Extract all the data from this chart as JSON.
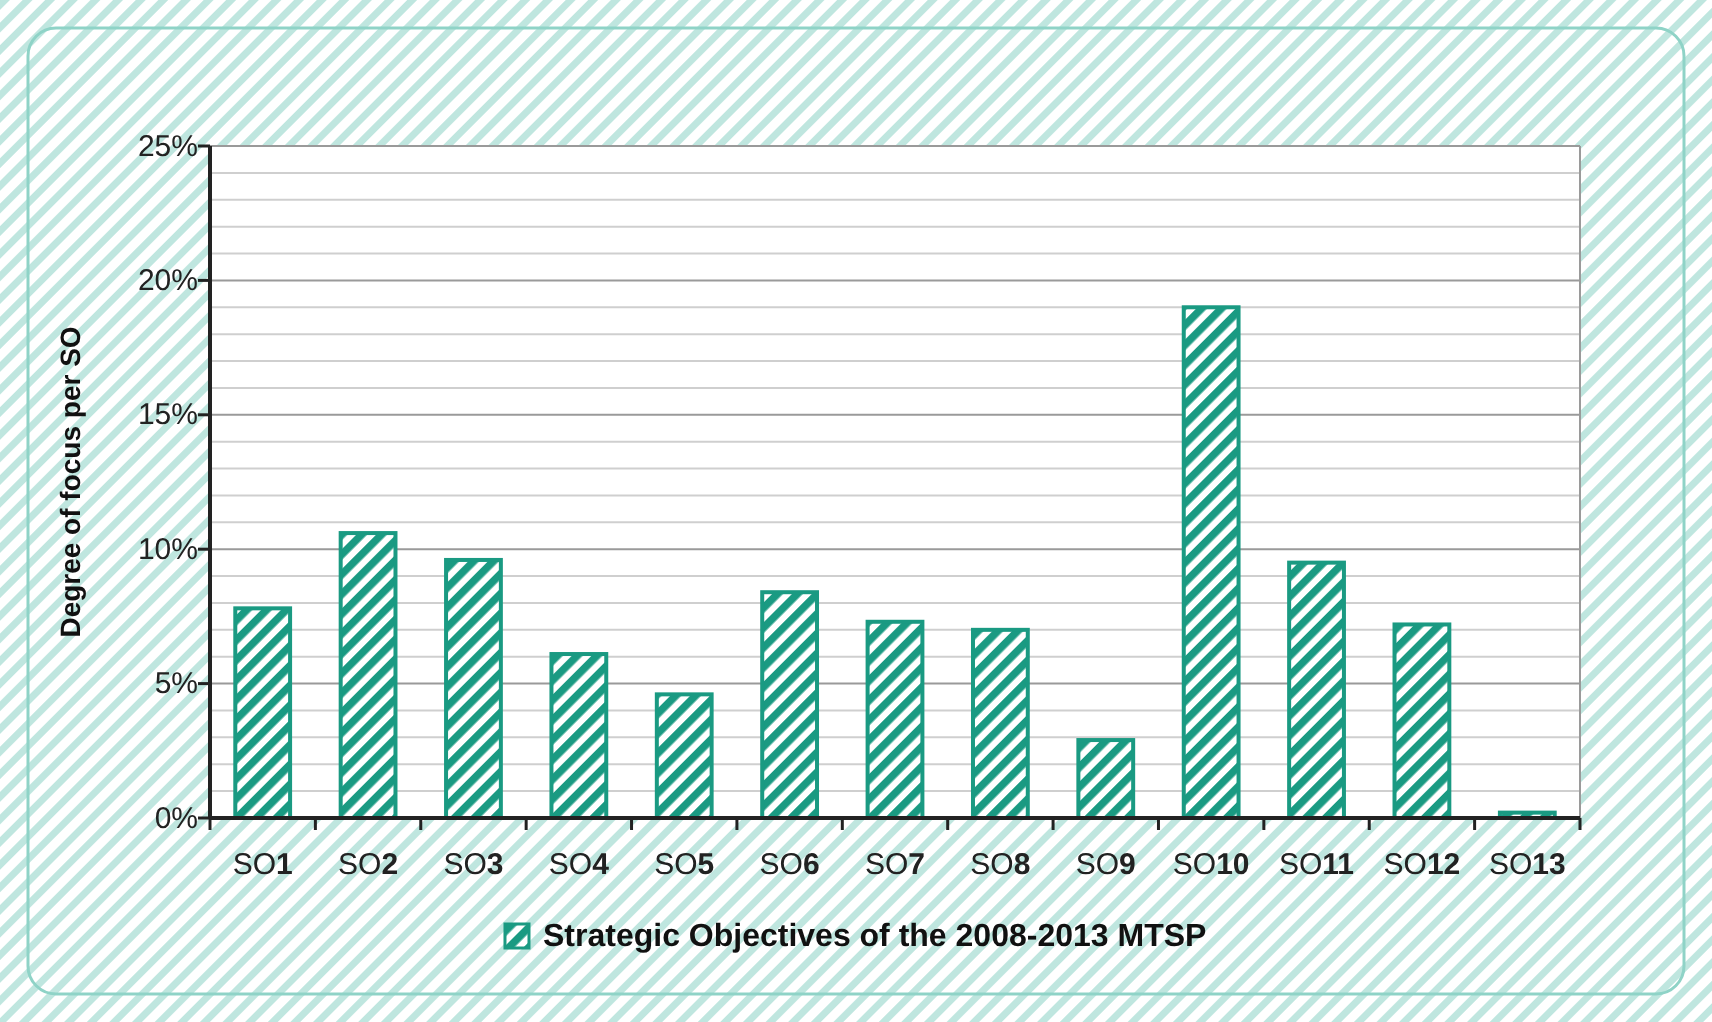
{
  "chart_data": {
    "type": "bar",
    "ylabel": "Degree of focus per SO",
    "categories": [
      "SO1",
      "SO2",
      "SO3",
      "SO4",
      "SO5",
      "SO6",
      "SO7",
      "SO8",
      "SO9",
      "SO10",
      "SO11",
      "SO12",
      "SO13"
    ],
    "series": [
      {
        "name": "Strategic Objectives of the 2008-2013 MTSP",
        "color": "#1a9a82",
        "values": [
          7.8,
          10.6,
          9.6,
          6.1,
          4.6,
          8.4,
          7.3,
          7.0,
          2.9,
          19.0,
          9.5,
          7.2,
          0.2
        ]
      }
    ],
    "ylim": [
      0,
      25
    ],
    "yticks": [
      {
        "value": 0,
        "label": "0%"
      },
      {
        "value": 1,
        "label": null
      },
      {
        "value": 2,
        "label": null
      },
      {
        "value": 3,
        "label": null
      },
      {
        "value": 4,
        "label": null
      },
      {
        "value": 5,
        "label": "5%"
      },
      {
        "value": 6,
        "label": null
      },
      {
        "value": 7,
        "label": null
      },
      {
        "value": 8,
        "label": null
      },
      {
        "value": 9,
        "label": null
      },
      {
        "value": 10,
        "label": "10%"
      },
      {
        "value": 11,
        "label": null
      },
      {
        "value": 12,
        "label": null
      },
      {
        "value": 13,
        "label": null
      },
      {
        "value": 14,
        "label": null
      },
      {
        "value": 15,
        "label": "15%"
      },
      {
        "value": 16,
        "label": null
      },
      {
        "value": 17,
        "label": null
      },
      {
        "value": 18,
        "label": null
      },
      {
        "value": 19,
        "label": null
      },
      {
        "value": 20,
        "label": "20%"
      },
      {
        "value": 21,
        "label": null
      },
      {
        "value": 22,
        "label": null
      },
      {
        "value": 23,
        "label": null
      },
      {
        "value": 24,
        "label": null
      },
      {
        "value": 25,
        "label": "25%"
      }
    ],
    "grid": "y",
    "legend": "bottom"
  }
}
